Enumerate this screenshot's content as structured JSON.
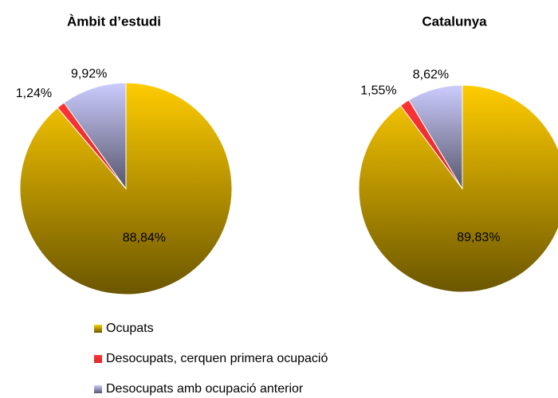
{
  "chart_data": [
    {
      "type": "pie",
      "title": "Àmbit d’estudi",
      "categories": [
        "Ocupats",
        "Desocupats, cerquen primera ocupació",
        "Desocupats amb ocupació anterior"
      ],
      "values": [
        88.84,
        1.24,
        9.92
      ],
      "value_labels": [
        "88,84%",
        "1,24%",
        "9,92%"
      ],
      "colors": [
        "#ffcc00",
        "#ff3333",
        "#ccccff"
      ]
    },
    {
      "type": "pie",
      "title": "Catalunya",
      "categories": [
        "Ocupats",
        "Desocupats, cerquen primera ocupació",
        "Desocupats amb ocupació anterior"
      ],
      "values": [
        89.83,
        1.55,
        8.62
      ],
      "value_labels": [
        "89,83%",
        "1,55%",
        "8,62%"
      ],
      "colors": [
        "#ffcc00",
        "#ff3333",
        "#ccccff"
      ]
    }
  ]
}
